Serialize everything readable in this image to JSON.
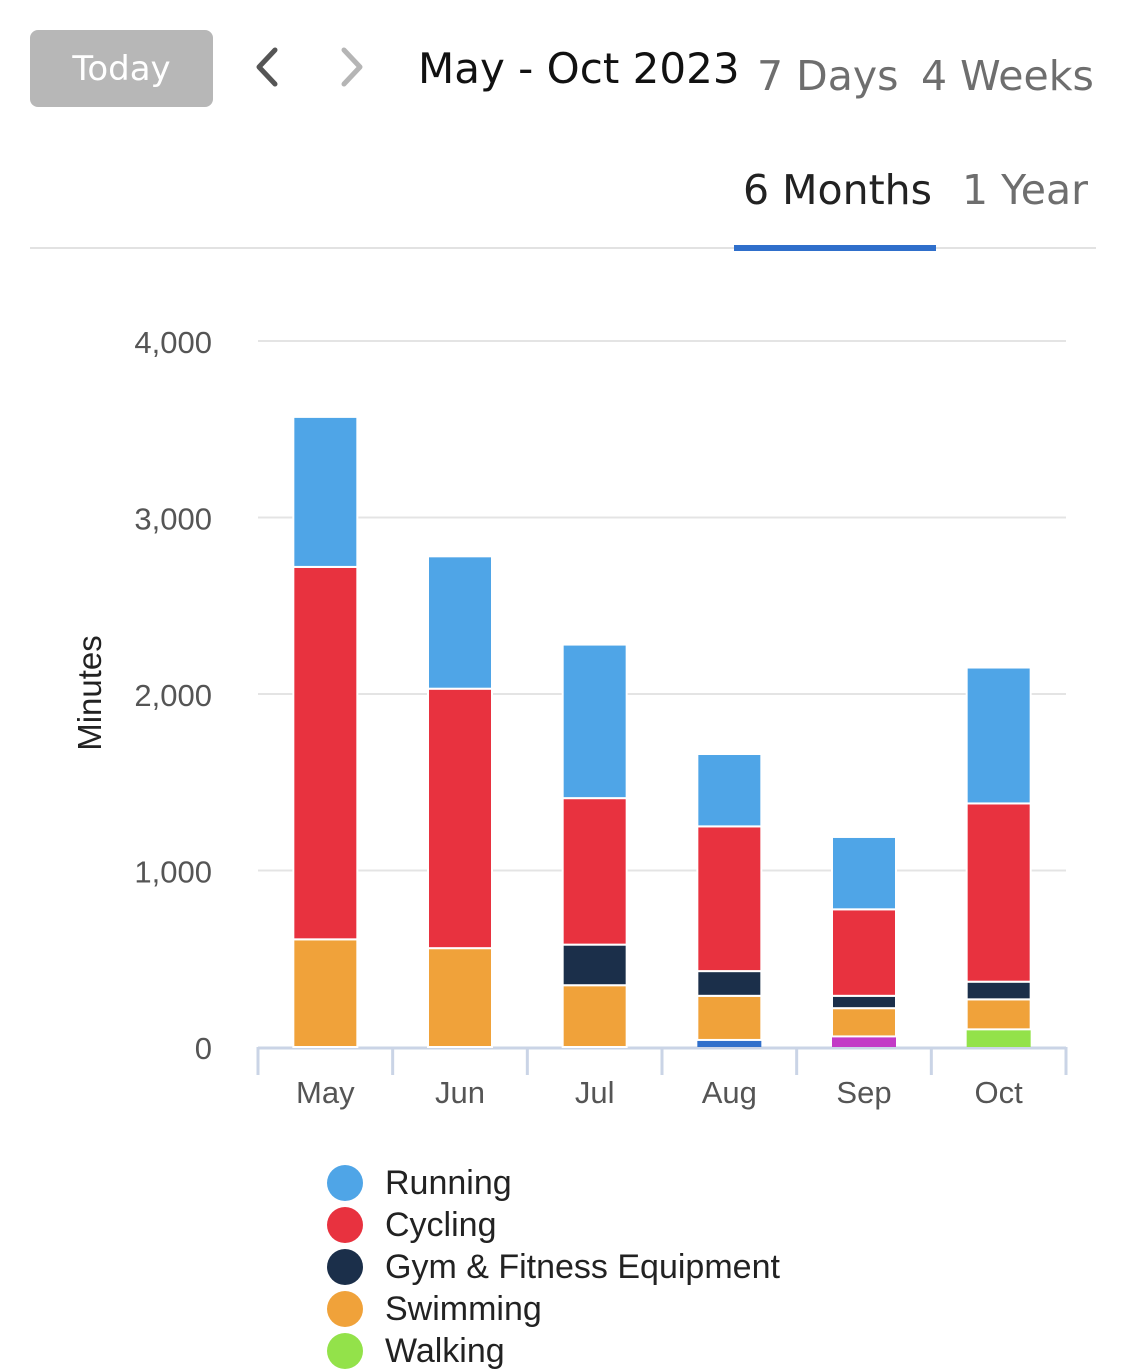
{
  "header": {
    "today_label": "Today",
    "prev_icon": "chevron-left-icon",
    "next_icon": "chevron-right-icon",
    "period": "May - Oct 2023",
    "ranges": [
      "7 Days",
      "4 Weeks",
      "6 Months",
      "1 Year"
    ],
    "active_range": "6 Months"
  },
  "colors": {
    "accent": "#2f6fcb",
    "Running": "#4fa5e7",
    "Cycling": "#e8323f",
    "Gym & Fitness Equipment": "#1b2f4a",
    "Swimming": "#f0a23a",
    "Walking": "#93e24a",
    "Other blue": "#2f6fcb",
    "Other magenta": "#c33ac6"
  },
  "chart_data": {
    "type": "bar",
    "stacked": true,
    "ylabel": "Minutes",
    "ylim": [
      0,
      4000
    ],
    "yticks": [
      "0",
      "1,000",
      "2,000",
      "3,000",
      "4,000"
    ],
    "categories": [
      "May",
      "Jun",
      "Jul",
      "Aug",
      "Sep",
      "Oct"
    ],
    "series": [
      {
        "name": "Swimming",
        "values": [
          610,
          560,
          350,
          250,
          160,
          170
        ]
      },
      {
        "name": "Gym & Fitness Equipment",
        "values": [
          0,
          0,
          230,
          140,
          70,
          100
        ]
      },
      {
        "name": "Cycling",
        "values": [
          2110,
          1470,
          830,
          820,
          490,
          1010
        ]
      },
      {
        "name": "Running",
        "values": [
          850,
          750,
          870,
          410,
          410,
          770
        ]
      }
    ],
    "unlabeled_segments": [
      {
        "category": "Aug",
        "color": "#2f6fcb",
        "value": 40
      },
      {
        "category": "Sep",
        "color": "#c33ac6",
        "value": 60
      },
      {
        "category": "Oct",
        "color": "#93e24a",
        "value": 100
      }
    ],
    "legend": [
      "Running",
      "Cycling",
      "Gym & Fitness Equipment",
      "Swimming",
      "Walking"
    ],
    "grid": true,
    "legend_placement": "bottom"
  }
}
